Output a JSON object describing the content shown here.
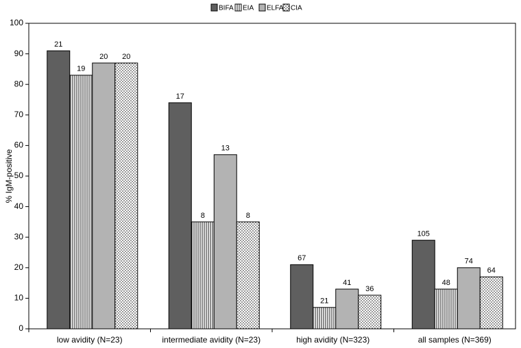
{
  "chart_data": {
    "type": "bar",
    "y_label": "% IgM-positive",
    "categories": [
      "low avidity (N=23)",
      "intermediate avidity (N=23)",
      "high avidity (N=323)",
      "all samples (N=369)"
    ],
    "series": [
      {
        "name": "BIFA",
        "color": "#5f5f5f",
        "pattern": "solid",
        "values": [
          91,
          74,
          21,
          29
        ],
        "counts": [
          21,
          17,
          67,
          105
        ]
      },
      {
        "name": "EIA",
        "color": "#000000",
        "pattern": "vertical-lines",
        "values": [
          83,
          35,
          7,
          13
        ],
        "counts": [
          19,
          8,
          21,
          48
        ]
      },
      {
        "name": "ELFA",
        "color": "#b3b3b3",
        "pattern": "solid",
        "values": [
          87,
          57,
          13,
          20
        ],
        "counts": [
          20,
          13,
          41,
          74
        ]
      },
      {
        "name": "CIA",
        "color": "#000000",
        "pattern": "dots",
        "values": [
          87,
          35,
          11,
          17
        ],
        "counts": [
          20,
          8,
          36,
          64
        ]
      }
    ],
    "ylim": [
      0,
      100
    ],
    "yticks": [
      0,
      10,
      20,
      30,
      40,
      50,
      60,
      70,
      80,
      90,
      100
    ],
    "legend": "top"
  }
}
